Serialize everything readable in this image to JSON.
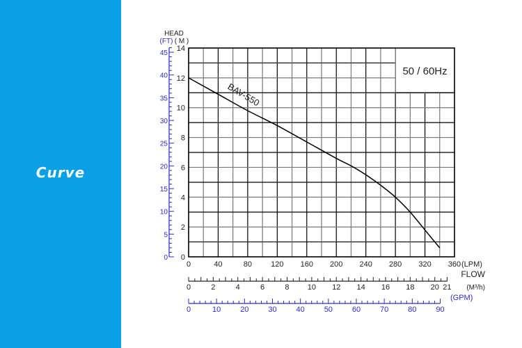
{
  "sidebar": {
    "title": "Curve",
    "background": "#0aa0e6"
  },
  "chart_data": {
    "type": "line",
    "title": "",
    "model_label": "BAV-550",
    "frequency_label": "50 / 60Hz",
    "ylabel_top": "HEAD",
    "ylabel_ft": "(FT)",
    "ylabel_m": "( M )",
    "xlabel": "FLOW",
    "x_unit_lpm": "(LPM)",
    "x_unit_m3h": "(M³/h)",
    "x_unit_gpm": "(GPM)",
    "xlim": [
      0,
      360
    ],
    "ylim": [
      0,
      14
    ],
    "grid": true,
    "x_ticks_lpm": [
      0,
      40,
      80,
      120,
      160,
      200,
      240,
      280,
      320,
      360
    ],
    "y_ticks_m": [
      0,
      2,
      4,
      6,
      8,
      10,
      12,
      14
    ],
    "y_ticks_ft": [
      0,
      5,
      10,
      15,
      20,
      25,
      30,
      35,
      40,
      45
    ],
    "x_ticks_m3h": [
      0,
      2,
      4,
      6,
      8,
      10,
      12,
      14,
      16,
      18,
      20,
      21
    ],
    "x_ticks_gpm": [
      0,
      10,
      20,
      30,
      40,
      50,
      60,
      70,
      80,
      90
    ],
    "series": [
      {
        "name": "BAV-550",
        "x": [
          0,
          40,
          80,
          120,
          160,
          200,
          220,
          240,
          260,
          280,
          300,
          320,
          335,
          340
        ],
        "y": [
          12,
          10.9,
          9.8,
          8.8,
          7.7,
          6.6,
          6.1,
          5.5,
          4.8,
          4.0,
          3.0,
          1.8,
          0.9,
          0.6
        ]
      }
    ],
    "colors": {
      "ft_axis": "#2a2acc",
      "gpm_axis": "#2a2acc",
      "grid": "#000000",
      "curve": "#000000"
    }
  }
}
